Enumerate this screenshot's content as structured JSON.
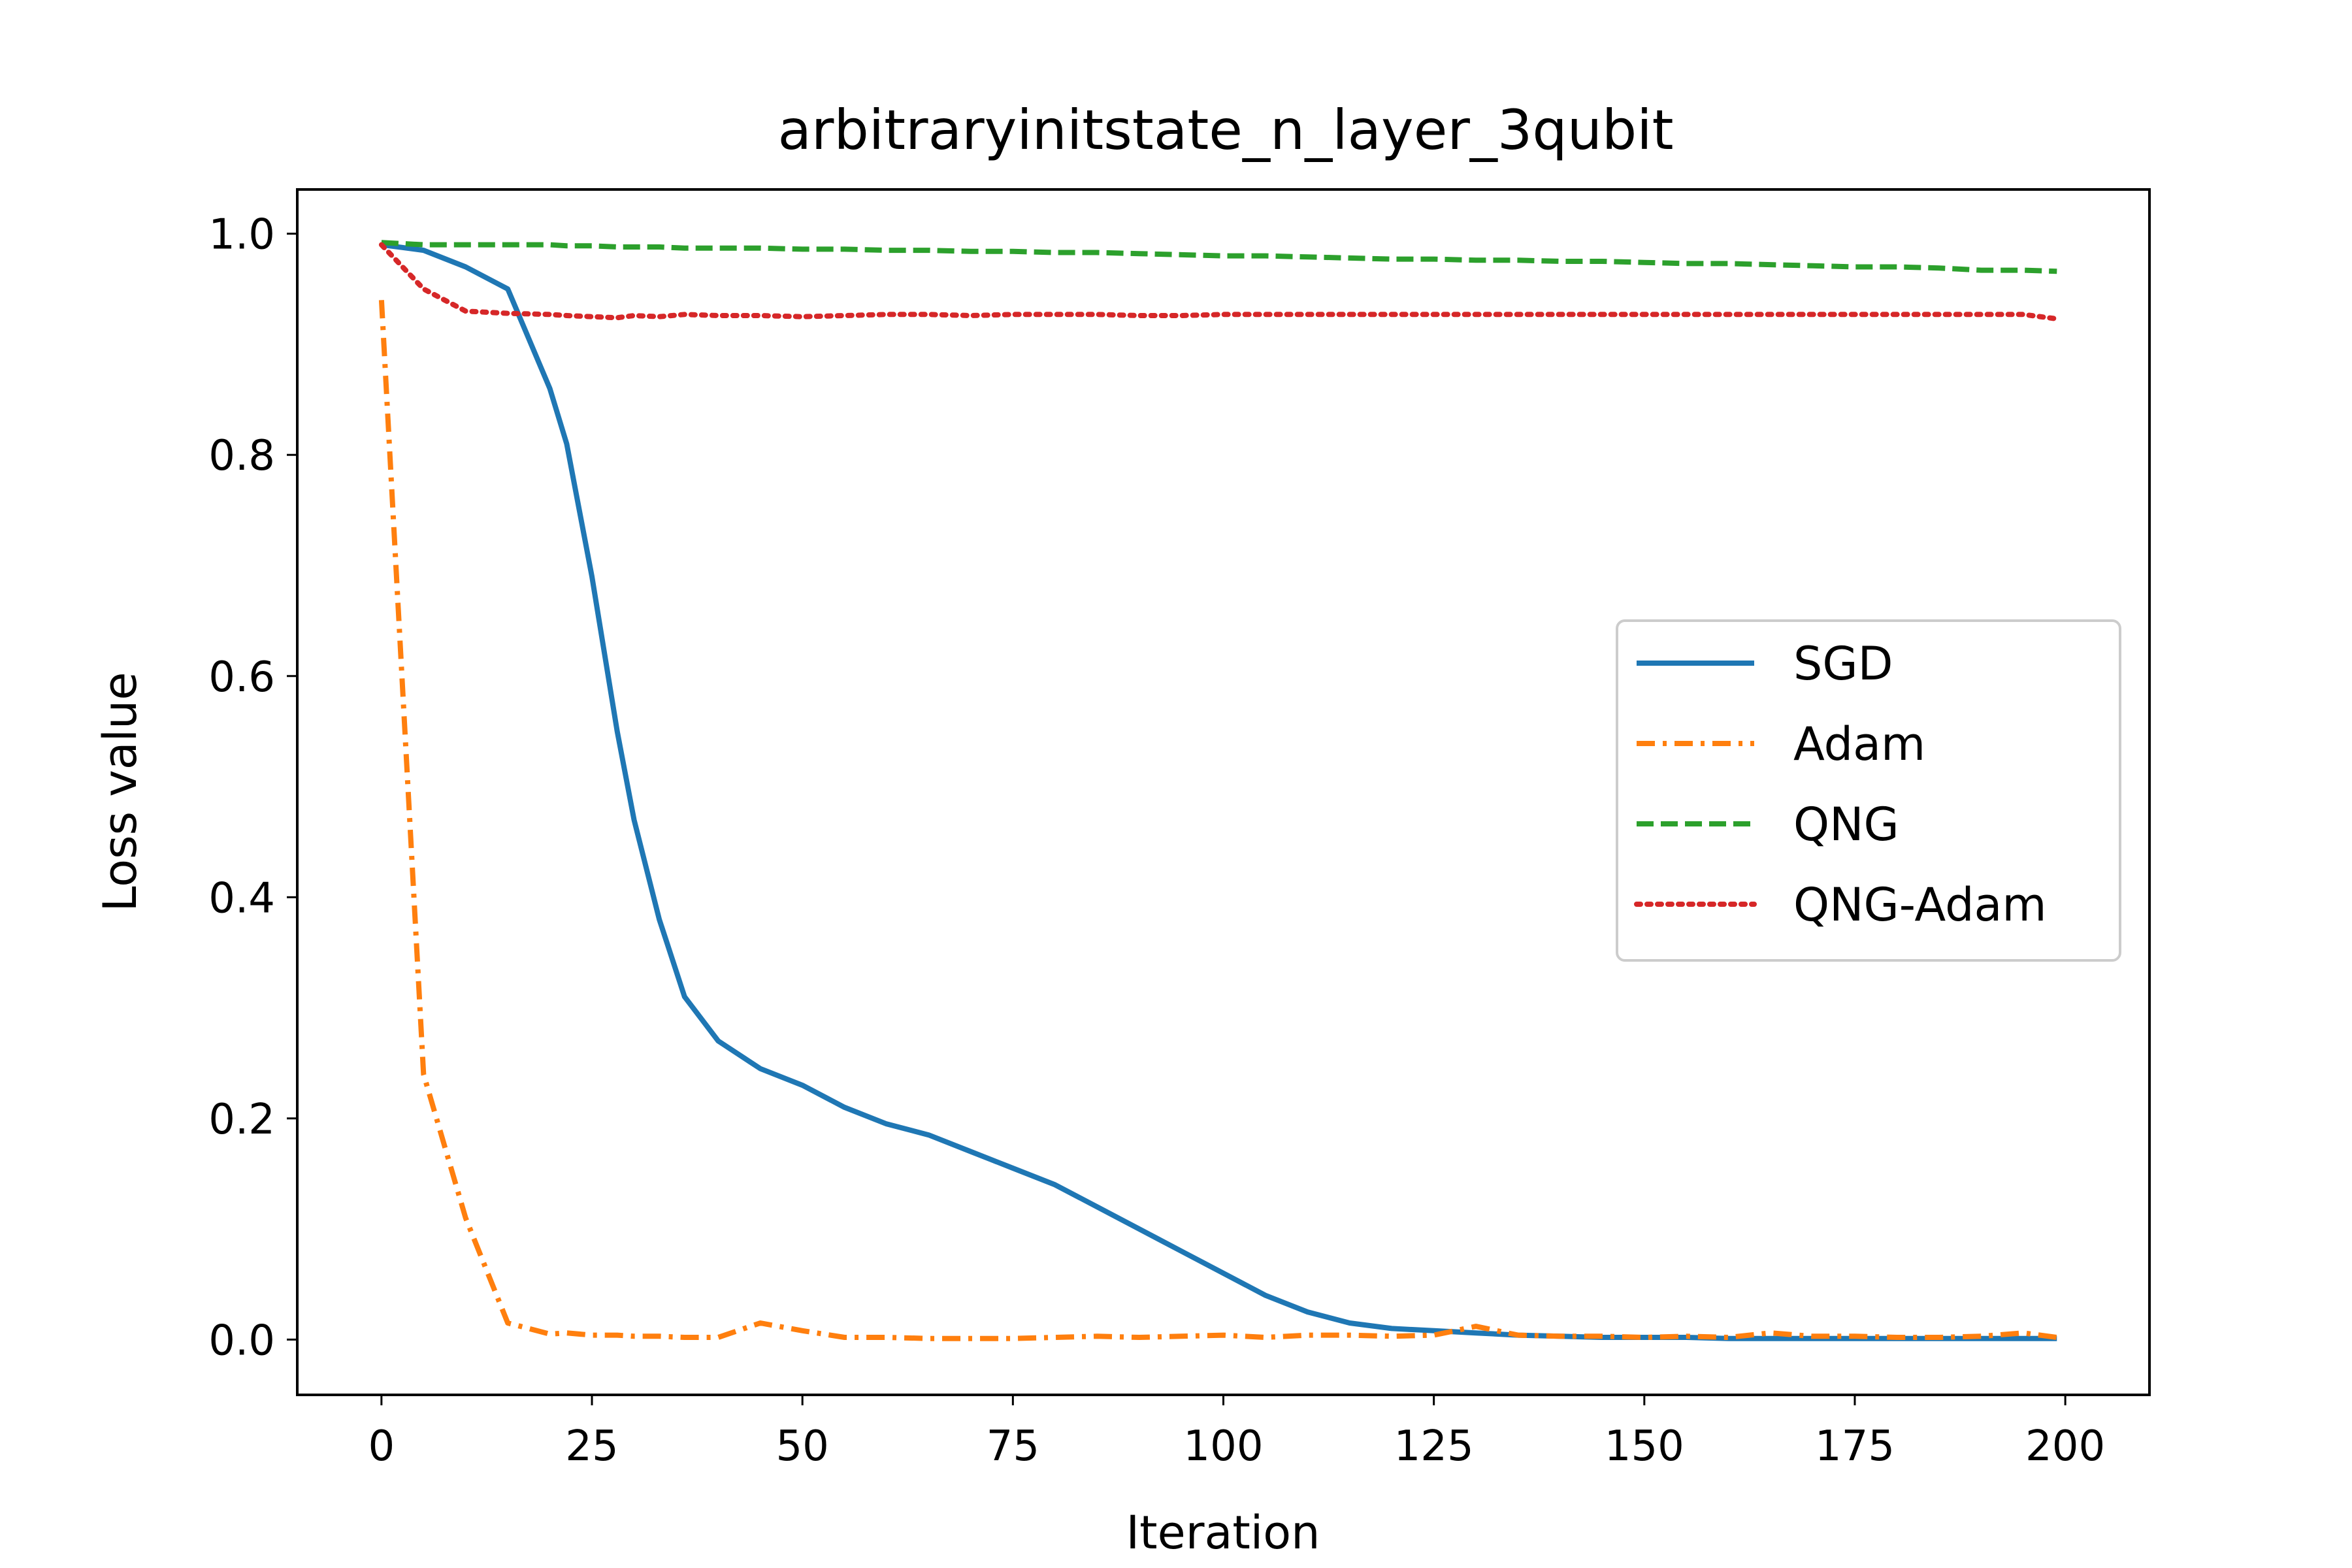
{
  "chart_data": {
    "type": "line",
    "title": "arbitraryinitstate_n_layer_3qubit",
    "xlabel": "Iteration",
    "ylabel": "Loss value",
    "xlim": [
      -10,
      210
    ],
    "ylim": [
      -0.05,
      1.04
    ],
    "x_ticks": [
      0,
      25,
      50,
      75,
      100,
      125,
      150,
      175,
      200
    ],
    "y_ticks": [
      0.0,
      0.2,
      0.4,
      0.6,
      0.8,
      1.0
    ],
    "x_tick_labels": [
      "0",
      "25",
      "50",
      "75",
      "100",
      "125",
      "150",
      "175",
      "200"
    ],
    "y_tick_labels": [
      "0.0",
      "0.2",
      "0.4",
      "0.6",
      "0.8",
      "1.0"
    ],
    "grid": false,
    "legend_position": "center-right",
    "x": [
      0,
      5,
      10,
      15,
      20,
      22,
      25,
      28,
      30,
      33,
      36,
      40,
      45,
      50,
      55,
      60,
      65,
      70,
      75,
      80,
      85,
      90,
      95,
      100,
      105,
      110,
      115,
      120,
      125,
      130,
      135,
      140,
      145,
      150,
      155,
      160,
      165,
      170,
      175,
      180,
      185,
      190,
      195,
      199
    ],
    "series": [
      {
        "name": "SGD",
        "color": "#1f77b4",
        "dash": "solid",
        "values": [
          0.99,
          0.985,
          0.97,
          0.95,
          0.86,
          0.81,
          0.69,
          0.55,
          0.47,
          0.38,
          0.31,
          0.27,
          0.245,
          0.23,
          0.21,
          0.195,
          0.185,
          0.17,
          0.155,
          0.14,
          0.12,
          0.1,
          0.08,
          0.06,
          0.04,
          0.025,
          0.015,
          0.01,
          0.008,
          0.006,
          0.004,
          0.003,
          0.002,
          0.002,
          0.002,
          0.001,
          0.001,
          0.001,
          0.001,
          0.001,
          0.001,
          0.001,
          0.001,
          0.001
        ]
      },
      {
        "name": "Adam",
        "color": "#ff7f0e",
        "dash": "dashdot",
        "values": [
          0.94,
          0.24,
          0.11,
          0.015,
          0.005,
          0.006,
          0.004,
          0.004,
          0.003,
          0.003,
          0.002,
          0.002,
          0.015,
          0.008,
          0.002,
          0.002,
          0.001,
          0.001,
          0.001,
          0.002,
          0.003,
          0.002,
          0.003,
          0.004,
          0.002,
          0.004,
          0.004,
          0.003,
          0.004,
          0.012,
          0.004,
          0.003,
          0.003,
          0.002,
          0.003,
          0.002,
          0.006,
          0.003,
          0.003,
          0.002,
          0.002,
          0.003,
          0.006,
          0.002
        ]
      },
      {
        "name": "QNG",
        "color": "#2ca02c",
        "dash": "dashed",
        "values": [
          0.992,
          0.99,
          0.99,
          0.99,
          0.99,
          0.989,
          0.989,
          0.988,
          0.988,
          0.988,
          0.987,
          0.987,
          0.987,
          0.986,
          0.986,
          0.985,
          0.985,
          0.984,
          0.984,
          0.983,
          0.983,
          0.982,
          0.981,
          0.98,
          0.98,
          0.979,
          0.978,
          0.977,
          0.977,
          0.976,
          0.976,
          0.975,
          0.975,
          0.974,
          0.973,
          0.973,
          0.972,
          0.971,
          0.97,
          0.97,
          0.969,
          0.967,
          0.967,
          0.966
        ]
      },
      {
        "name": "QNG-Adam",
        "color": "#d62728",
        "dash": "dotted",
        "values": [
          0.99,
          0.95,
          0.93,
          0.928,
          0.927,
          0.926,
          0.925,
          0.924,
          0.926,
          0.925,
          0.927,
          0.926,
          0.926,
          0.925,
          0.926,
          0.927,
          0.927,
          0.926,
          0.927,
          0.927,
          0.927,
          0.926,
          0.926,
          0.927,
          0.927,
          0.927,
          0.927,
          0.927,
          0.927,
          0.927,
          0.927,
          0.927,
          0.927,
          0.927,
          0.927,
          0.927,
          0.927,
          0.927,
          0.927,
          0.927,
          0.927,
          0.927,
          0.927,
          0.923
        ]
      }
    ]
  }
}
